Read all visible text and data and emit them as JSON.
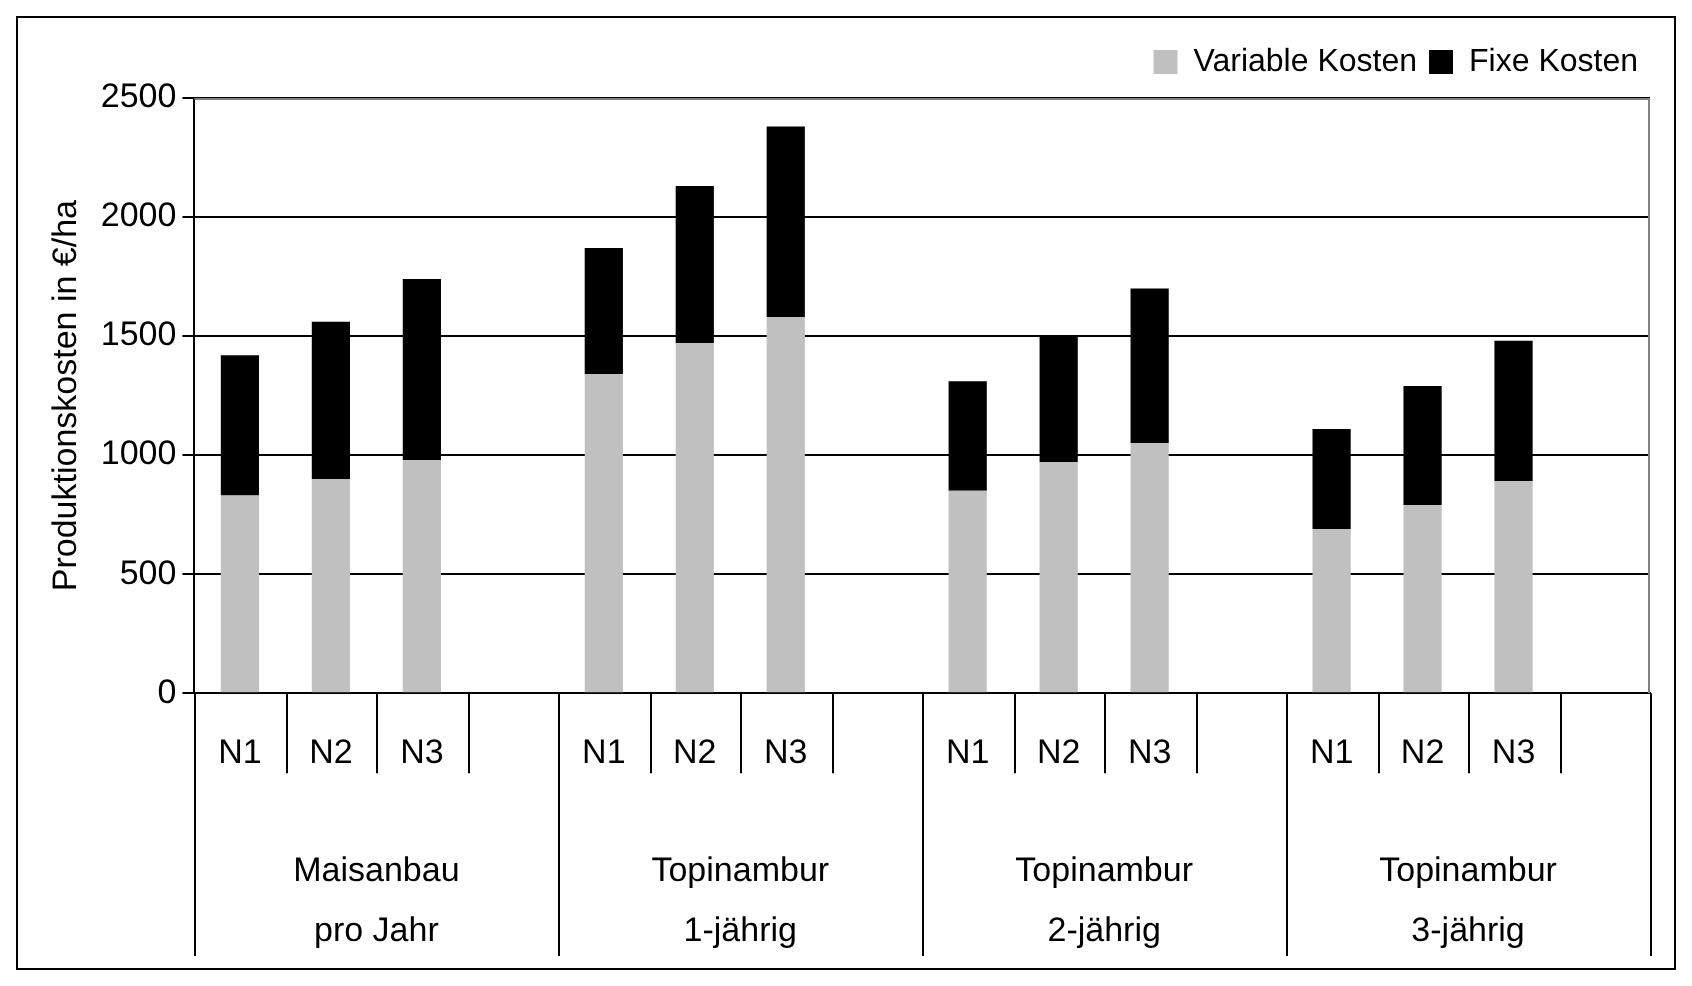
{
  "chart_data": {
    "type": "bar",
    "stacked": true,
    "ylabel": "Produktionskosten in €/ha",
    "categories": [
      "N1",
      "N2",
      "N3",
      null,
      "N1",
      "N2",
      "N3",
      null,
      "N1",
      "N2",
      "N3",
      null,
      "N1",
      "N2",
      "N3",
      null
    ],
    "series": [
      {
        "name": "Variable Kosten",
        "color": "#c0c0c0",
        "values": [
          830,
          900,
          980,
          null,
          1340,
          1470,
          1580,
          null,
          850,
          970,
          1050,
          null,
          690,
          790,
          890,
          null
        ]
      },
      {
        "name": "Fixe Kosten",
        "color": "#000000",
        "values": [
          590,
          660,
          760,
          null,
          530,
          660,
          800,
          null,
          460,
          530,
          650,
          null,
          420,
          500,
          590,
          null
        ]
      }
    ],
    "annotations": [
      "Maisanbau pro Jahr",
      "Topinambur 1-jährig",
      "Topinambur 2-jährig",
      "Topinambur 3-jährig"
    ],
    "ylim": [
      0,
      2500
    ],
    "yticks": [
      0,
      500,
      1000,
      1500,
      2000,
      2500
    ],
    "grid": "y",
    "legend": "top right"
  }
}
